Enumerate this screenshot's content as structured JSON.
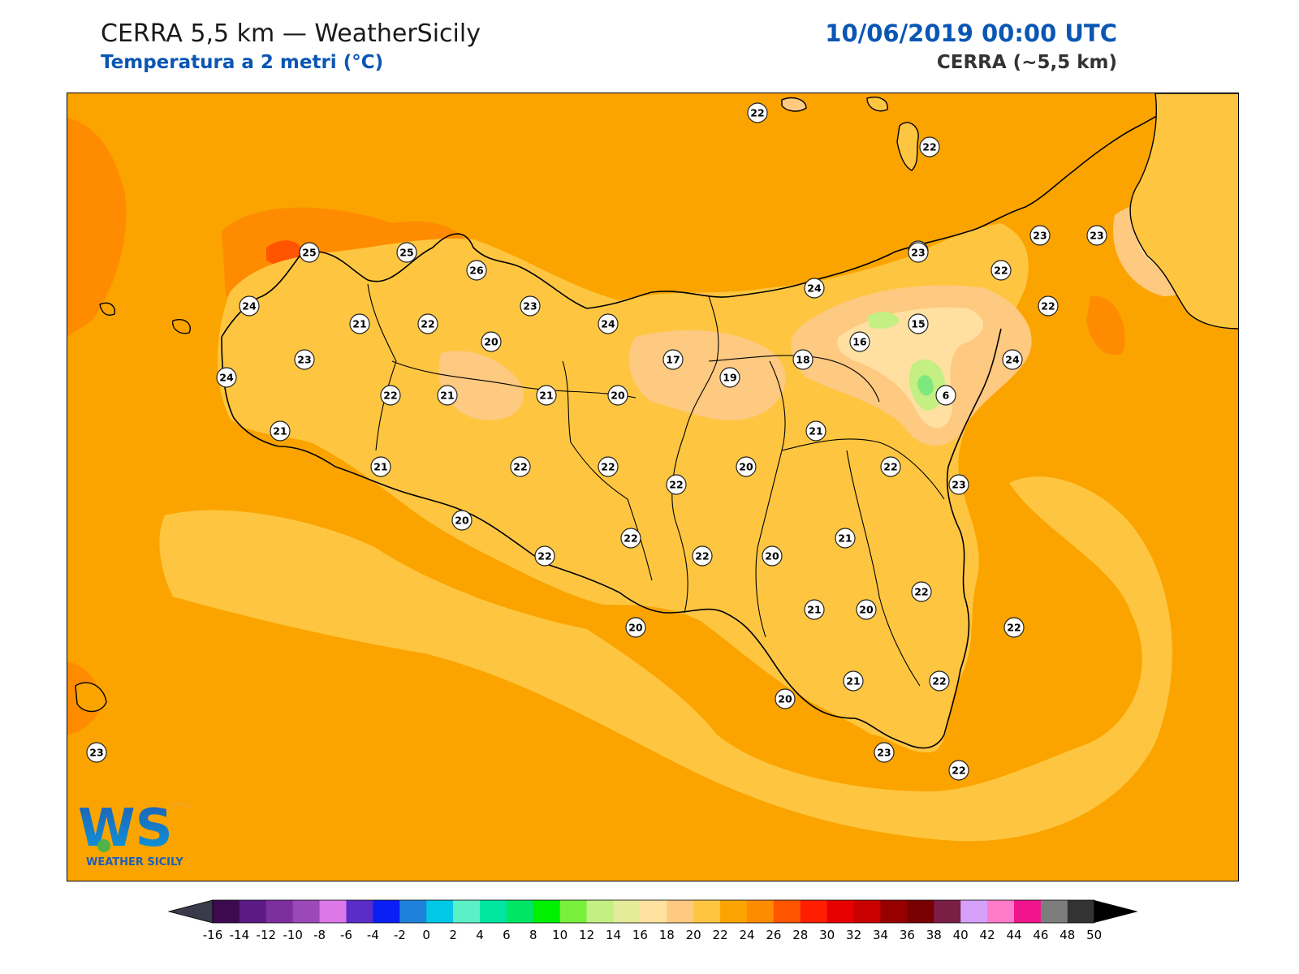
{
  "header": {
    "title": "CERRA 5,5 km — WeatherSicily",
    "subtitle": "Temperatura a 2 metri (°C)",
    "datetime": "10/06/2019 00:00 UTC",
    "model": "CERRA (~5,5 km)"
  },
  "logo": {
    "text": "WEATHER SICILY",
    "mark": "WS"
  },
  "colors": {
    "background_sea": "#fba400",
    "land_base": "#fec640",
    "warm_patch": "#ff8c00",
    "hot_patch": "#ff5400",
    "cool_patch": "#fec980",
    "cooler_patch": "#ffe0a0",
    "green_patch": "#7ee87e",
    "coast": "#000000",
    "accent": "#0a56b4"
  },
  "colorbar": {
    "ticks": [
      "-16",
      "-14",
      "-12",
      "-10",
      "-8",
      "-6",
      "-4",
      "-2",
      "0",
      "2",
      "4",
      "6",
      "8",
      "10",
      "12",
      "14",
      "16",
      "18",
      "20",
      "22",
      "24",
      "26",
      "28",
      "30",
      "32",
      "34",
      "36",
      "38",
      "40",
      "42",
      "44",
      "46",
      "48",
      "50"
    ],
    "colors": [
      "#3d0a4f",
      "#5b1a85",
      "#7d2fa0",
      "#9b48b8",
      "#dc78e8",
      "#5a2cc8",
      "#0a1ef5",
      "#1e82dc",
      "#00c8e6",
      "#5cf0c8",
      "#00e6a0",
      "#00e664",
      "#00f000",
      "#78f03c",
      "#c4ef82",
      "#e4ec9a",
      "#ffe2a0",
      "#fec980",
      "#fec640",
      "#fba400",
      "#ff8c00",
      "#ff5400",
      "#ff1e00",
      "#e60000",
      "#c80000",
      "#960000",
      "#780000",
      "#7a1e46",
      "#d4a0fa",
      "#ff7ac8",
      "#f0148c",
      "#7d7d7d",
      "#333333"
    ]
  },
  "stations": [
    {
      "v": "22"
    },
    {
      "v": "22"
    },
    {
      "v": "23"
    },
    {
      "v": "23"
    },
    {
      "v": "23"
    },
    {
      "v": "22"
    },
    {
      "v": "25"
    },
    {
      "v": "25"
    },
    {
      "v": "26"
    },
    {
      "v": "24"
    },
    {
      "v": "24"
    },
    {
      "v": "23"
    },
    {
      "v": "24"
    },
    {
      "v": "23"
    },
    {
      "v": "22"
    },
    {
      "v": "21"
    },
    {
      "v": "22"
    },
    {
      "v": "23"
    },
    {
      "v": "20"
    },
    {
      "v": "15"
    },
    {
      "v": "16"
    },
    {
      "v": "18"
    },
    {
      "v": "17"
    },
    {
      "v": "19"
    },
    {
      "v": "24"
    },
    {
      "v": "24"
    },
    {
      "v": "22"
    },
    {
      "v": "21"
    },
    {
      "v": "21"
    },
    {
      "v": "20"
    },
    {
      "v": "6"
    },
    {
      "v": "21"
    },
    {
      "v": "21"
    },
    {
      "v": "21"
    },
    {
      "v": "22"
    },
    {
      "v": "22"
    },
    {
      "v": "22"
    },
    {
      "v": "20"
    },
    {
      "v": "22"
    },
    {
      "v": "23"
    },
    {
      "v": "20"
    },
    {
      "v": "21"
    },
    {
      "v": "22"
    },
    {
      "v": "22"
    },
    {
      "v": "22"
    },
    {
      "v": "20"
    },
    {
      "v": "20"
    },
    {
      "v": "21"
    },
    {
      "v": "20"
    },
    {
      "v": "22"
    },
    {
      "v": "22"
    },
    {
      "v": "20"
    },
    {
      "v": "21"
    },
    {
      "v": "22"
    },
    {
      "v": "23"
    },
    {
      "v": "22"
    },
    {
      "v": "23"
    }
  ]
}
